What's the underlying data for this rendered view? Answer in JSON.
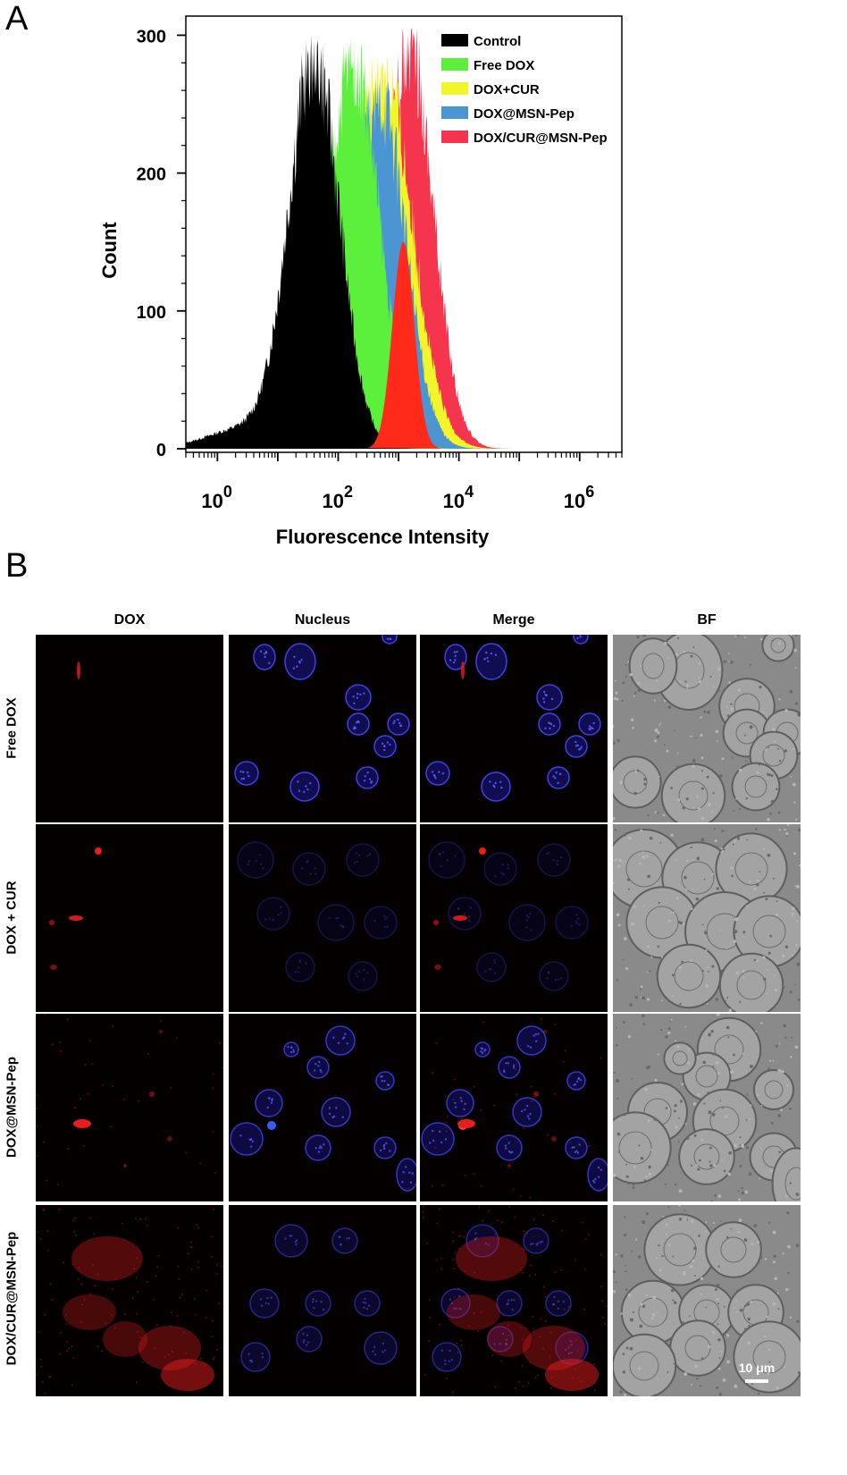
{
  "panel_labels": {
    "a": "A",
    "b": "B"
  },
  "chart_data": {
    "type": "area",
    "xlabel": "Fluorescence Intensity",
    "ylabel": "Count",
    "x_scale": "log",
    "xlim": [
      0.3,
      5000000
    ],
    "ylim": [
      0,
      310
    ],
    "x_ticks": [
      {
        "value": 1,
        "base": "10",
        "exp": "0"
      },
      {
        "value": 100,
        "base": "10",
        "exp": "2"
      },
      {
        "value": 10000,
        "base": "10",
        "exp": "4"
      },
      {
        "value": 1000000,
        "base": "10",
        "exp": "6"
      }
    ],
    "y_ticks": [
      0,
      100,
      200,
      300
    ],
    "legend_position": "top-right",
    "series": [
      {
        "name": "Control",
        "color": "#000000",
        "peak_x": 40,
        "peak_y": 300
      },
      {
        "name": "Free DOX",
        "color": "#5cf03c",
        "peak_x": 180,
        "peak_y": 300
      },
      {
        "name": "DOX+CUR",
        "color": "#f2f52a",
        "peak_x": 550,
        "peak_y": 292
      },
      {
        "name": "DOX@MSN-Pep",
        "color": "#4b96d2",
        "peak_x": 500,
        "peak_y": 270
      },
      {
        "name": "DOX/CUR@MSN-Pep",
        "color": "#f5344e",
        "peak_x": 1500,
        "peak_y": 310
      }
    ]
  },
  "microscopy": {
    "columns": [
      "DOX",
      "Nucleus",
      "Merge",
      "BF"
    ],
    "rows": [
      "Free DOX",
      "DOX + CUR",
      "DOX@MSN-Pep",
      "DOX/CUR@MSN-Pep"
    ],
    "scale_bar": "10 μm"
  }
}
